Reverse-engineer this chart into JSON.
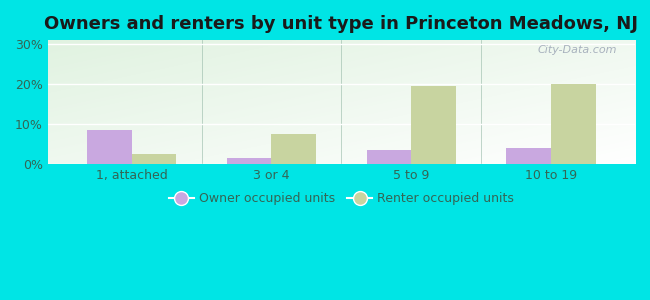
{
  "title": "Owners and renters by unit type in Princeton Meadows, NJ",
  "categories": [
    "1, attached",
    "3 or 4",
    "5 to 9",
    "10 to 19"
  ],
  "owner_values": [
    8.5,
    1.5,
    3.5,
    4.0
  ],
  "renter_values": [
    2.5,
    7.5,
    19.5,
    20.0
  ],
  "owner_color": "#c9a8e0",
  "renter_color": "#c8d4a0",
  "background_color": "#00e5e5",
  "yticks": [
    0,
    10,
    20,
    30
  ],
  "ylim": [
    0,
    31
  ],
  "bar_width": 0.32,
  "legend_owner": "Owner occupied units",
  "legend_renter": "Renter occupied units",
  "watermark": "City-Data.com",
  "title_fontsize": 13,
  "tick_fontsize": 9,
  "legend_fontsize": 9,
  "tick_color": "#336655"
}
